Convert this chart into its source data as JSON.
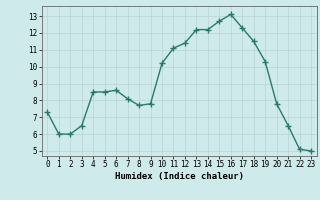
{
  "x": [
    0,
    1,
    2,
    3,
    4,
    5,
    6,
    7,
    8,
    9,
    10,
    11,
    12,
    13,
    14,
    15,
    16,
    17,
    18,
    19,
    20,
    21,
    22,
    23
  ],
  "y": [
    7.3,
    6.0,
    6.0,
    6.5,
    8.5,
    8.5,
    8.6,
    8.1,
    7.7,
    7.8,
    10.2,
    11.1,
    11.4,
    12.2,
    12.2,
    12.7,
    13.1,
    12.3,
    11.5,
    10.3,
    7.8,
    6.5,
    5.1,
    5.0
  ],
  "xlabel": "Humidex (Indice chaleur)",
  "ylim": [
    4.7,
    13.6
  ],
  "xlim": [
    -0.5,
    23.5
  ],
  "yticks": [
    5,
    6,
    7,
    8,
    9,
    10,
    11,
    12,
    13
  ],
  "xticks": [
    0,
    1,
    2,
    3,
    4,
    5,
    6,
    7,
    8,
    9,
    10,
    11,
    12,
    13,
    14,
    15,
    16,
    17,
    18,
    19,
    20,
    21,
    22,
    23
  ],
  "line_color": "#2a7a6a",
  "bg_color": "#ceeaea",
  "grid_color": "#b8d4d4",
  "marker": "+",
  "marker_size": 4,
  "line_width": 1.0,
  "tick_fontsize": 5.5,
  "xlabel_fontsize": 6.5
}
